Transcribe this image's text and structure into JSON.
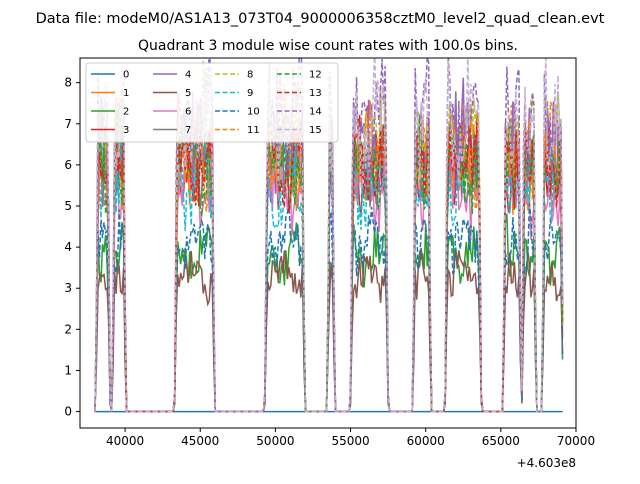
{
  "chart_data": {
    "type": "line",
    "suptitle": "Data file: modeM0/AS1A13_073T04_9000006358cztM0_level2_quad_clean.evt",
    "title": "Quadrant 3 module wise count rates with 100.0s bins.",
    "xlabel": "",
    "ylabel": "",
    "x_offset_label": "+4.603e8",
    "xlim": [
      37000,
      70000
    ],
    "ylim": [
      -0.4,
      8.6
    ],
    "x_ticks": [
      40000,
      45000,
      50000,
      55000,
      60000,
      65000,
      70000
    ],
    "y_ticks": [
      0,
      1,
      2,
      3,
      4,
      5,
      6,
      7,
      8
    ],
    "grid": false,
    "legend_position": "top-left",
    "segments": [
      [
        38200,
        38850
      ],
      [
        39300,
        39900
      ],
      [
        43450,
        45800
      ],
      [
        49450,
        51800
      ],
      [
        53600,
        53800
      ],
      [
        55150,
        57350
      ],
      [
        59300,
        60200
      ],
      [
        61450,
        63550
      ],
      [
        65300,
        66200
      ],
      [
        66550,
        67200
      ],
      [
        67900,
        69000
      ]
    ],
    "series": [
      {
        "name": "0",
        "color": "#1f77b4",
        "dash": "solid",
        "level": 0.0
      },
      {
        "name": "1",
        "color": "#ff7f0e",
        "dash": "solid",
        "level": 6.0
      },
      {
        "name": "2",
        "color": "#2ca02c",
        "dash": "solid",
        "level": 3.8
      },
      {
        "name": "3",
        "color": "#d62728",
        "dash": "solid",
        "level": 5.9
      },
      {
        "name": "4",
        "color": "#9467bd",
        "dash": "solid",
        "level": 6.3
      },
      {
        "name": "5",
        "color": "#8c564b",
        "dash": "solid",
        "level": 3.3
      },
      {
        "name": "6",
        "color": "#e377c2",
        "dash": "solid",
        "level": 5.3
      },
      {
        "name": "7",
        "color": "#7f7f7f",
        "dash": "solid",
        "level": 6.1
      },
      {
        "name": "8",
        "color": "#bcbd22",
        "dash": "dashed",
        "level": 6.6
      },
      {
        "name": "9",
        "color": "#17becf",
        "dash": "dashed",
        "level": 5.5
      },
      {
        "name": "10",
        "color": "#1f77b4",
        "dash": "dashed",
        "level": 4.2
      },
      {
        "name": "11",
        "color": "#ff7f0e",
        "dash": "dashed",
        "level": 6.2
      },
      {
        "name": "12",
        "color": "#2ca02c",
        "dash": "dashed",
        "level": 6.0
      },
      {
        "name": "13",
        "color": "#d62728",
        "dash": "dashed",
        "level": 6.0
      },
      {
        "name": "14",
        "color": "#9467bd",
        "dash": "dashed",
        "level": 7.1
      },
      {
        "name": "15",
        "color": "#c5b0d5",
        "dash": "dashed",
        "level": 6.9
      }
    ]
  }
}
